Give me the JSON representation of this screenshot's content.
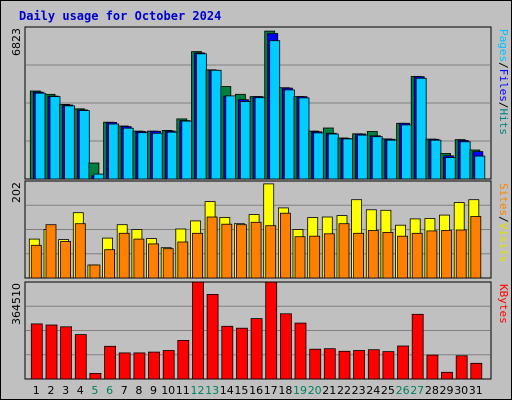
{
  "chart_data": {
    "type": "bar",
    "title": "Daily usage for October 2024",
    "categories": [
      "1",
      "2",
      "3",
      "4",
      "5",
      "6",
      "7",
      "8",
      "9",
      "10",
      "11",
      "12",
      "13",
      "14",
      "15",
      "16",
      "17",
      "18",
      "19",
      "20",
      "21",
      "22",
      "23",
      "24",
      "25",
      "26",
      "27",
      "28",
      "29",
      "30",
      "31"
    ],
    "weekend_days": [
      "5",
      "6",
      "12",
      "13",
      "19",
      "20",
      "26",
      "27"
    ],
    "panels": [
      {
        "id": "hits_files_pages",
        "ymax_label": "6823",
        "ymax": 6823,
        "right_label": [
          "Pages",
          "/",
          "Files",
          "/",
          "Hits"
        ],
        "series": [
          {
            "name": "Hits",
            "color": "#008040",
            "values": [
              3950,
              3800,
              3350,
              3150,
              720,
              2550,
              2380,
              2150,
              2150,
              2180,
              2700,
              5720,
              4900,
              4150,
              3800,
              3700,
              6640,
              4100,
              3700,
              2150,
              2290,
              1840,
              2030,
              2130,
              1800,
              2500,
              4600,
              1790,
              1150,
              1770,
              1300
            ]
          },
          {
            "name": "Files",
            "color": "#0000ff",
            "values": [
              3900,
              3720,
              3320,
              3100,
              150,
              2540,
              2350,
              2130,
              2140,
              2150,
              2620,
              5660,
              4880,
              3720,
              3560,
              3700,
              6530,
              4080,
              3700,
              2120,
              2050,
              1820,
              2020,
              1940,
              1780,
              2500,
              4590,
              1780,
              1040,
              1730,
              1230
            ]
          },
          {
            "name": "Pages",
            "color": "#00e0ff",
            "values": [
              3850,
              3700,
              3280,
              3070,
              220,
              2470,
              2280,
              2080,
              2050,
              2100,
              2600,
              5620,
              4880,
              3730,
              3480,
              3650,
              6210,
              4000,
              3640,
              2070,
              2020,
              1800,
              1970,
              1900,
              1740,
              2430,
              4520,
              1740,
              960,
              1670,
              1030
            ]
          }
        ]
      },
      {
        "id": "visits_sites",
        "ymax_label": "202",
        "ymax": 202,
        "right_label": [
          "Sites",
          "/",
          "Visits"
        ],
        "series": [
          {
            "name": "Visits",
            "color": "#ffff00",
            "values": [
              81,
              101,
              80,
              136,
              27,
              83,
              111,
              101,
              82,
              63,
              102,
              119,
              159,
              126,
              113,
              132,
              196,
              146,
              101,
              126,
              127,
              130,
              163,
              142,
              141,
              110,
              123,
              124,
              131,
              157,
              163
            ]
          },
          {
            "name": "Sites",
            "color": "#ff8000",
            "values": [
              68,
              111,
              76,
              113,
              27,
              59,
              93,
              81,
              71,
              61,
              75,
              93,
              127,
              112,
              111,
              116,
              109,
              135,
              86,
              87,
              92,
              113,
              93,
              99,
              95,
              87,
              93,
              98,
              99,
              100,
              128
            ]
          }
        ]
      },
      {
        "id": "kbytes",
        "ymax_label": "364510",
        "ymax": 364510,
        "right_label": [
          "KBytes"
        ],
        "series": [
          {
            "name": "KBytes",
            "color": "#ff0000",
            "values": [
              207000,
              203000,
              196000,
              167000,
              21000,
              123000,
              98000,
              98000,
              101000,
              107000,
              145000,
              364000,
              318000,
              198000,
              191000,
              227000,
              364000,
              245000,
              210000,
              112000,
              114000,
              104000,
              107000,
              110000,
              103000,
              124000,
              243000,
              90000,
              25000,
              87000,
              59000
            ]
          }
        ]
      }
    ]
  }
}
